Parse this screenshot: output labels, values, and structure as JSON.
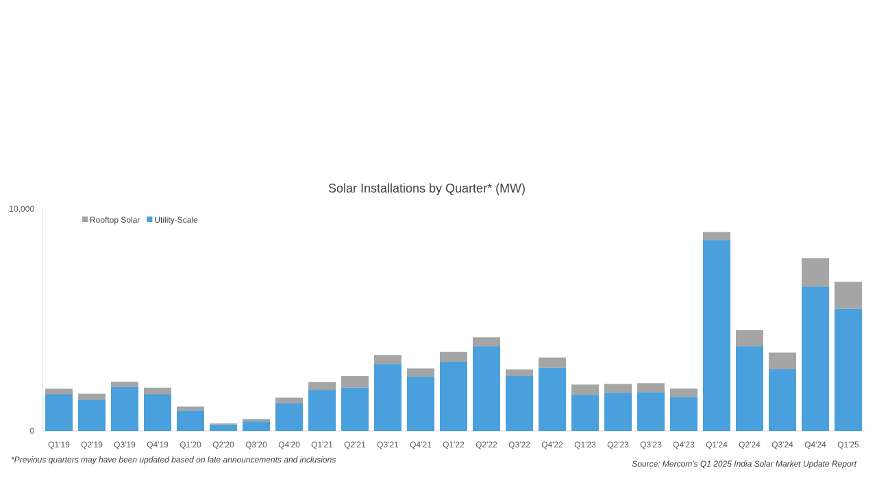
{
  "chart_data": {
    "type": "bar",
    "stacked": true,
    "title": "Solar Installations by Quarter* (MW)",
    "categories": [
      "Q1'19",
      "Q2'19",
      "Q3'19",
      "Q4'19",
      "Q1'20",
      "Q2'20",
      "Q3'20",
      "Q4'20",
      "Q1'21",
      "Q2'21",
      "Q3'21",
      "Q4'21",
      "Q1'22",
      "Q2'22",
      "Q3'22",
      "Q4'22",
      "Q1'23",
      "Q2'23",
      "Q3'23",
      "Q4'23",
      "Q1'24",
      "Q2'24",
      "Q3'24",
      "Q4'24",
      "Q1'25"
    ],
    "series": [
      {
        "name": "Utility-Scale",
        "color": "#4aa0dd",
        "values": [
          1650,
          1400,
          1980,
          1650,
          920,
          280,
          430,
          1250,
          1850,
          1950,
          3020,
          2450,
          3120,
          3820,
          2480,
          2850,
          1620,
          1720,
          1750,
          1530,
          8600,
          3820,
          2780,
          6500,
          5500
        ]
      },
      {
        "name": "Rooftop Solar",
        "color": "#a5a5a5",
        "values": [
          250,
          280,
          240,
          300,
          180,
          60,
          110,
          250,
          350,
          520,
          400,
          370,
          440,
          400,
          290,
          460,
          470,
          400,
          400,
          380,
          360,
          720,
          750,
          1280,
          1220
        ]
      }
    ],
    "ylim": [
      0,
      10000
    ],
    "y_tick_labels": [
      "0",
      "10,000"
    ],
    "legend_position": "top-left",
    "grid": false
  },
  "footnote": "*Previous quarters may have been updated based on late announcements and inclusions",
  "source": "Source: Mercom's Q1 2025 India Solar Market Update Report"
}
